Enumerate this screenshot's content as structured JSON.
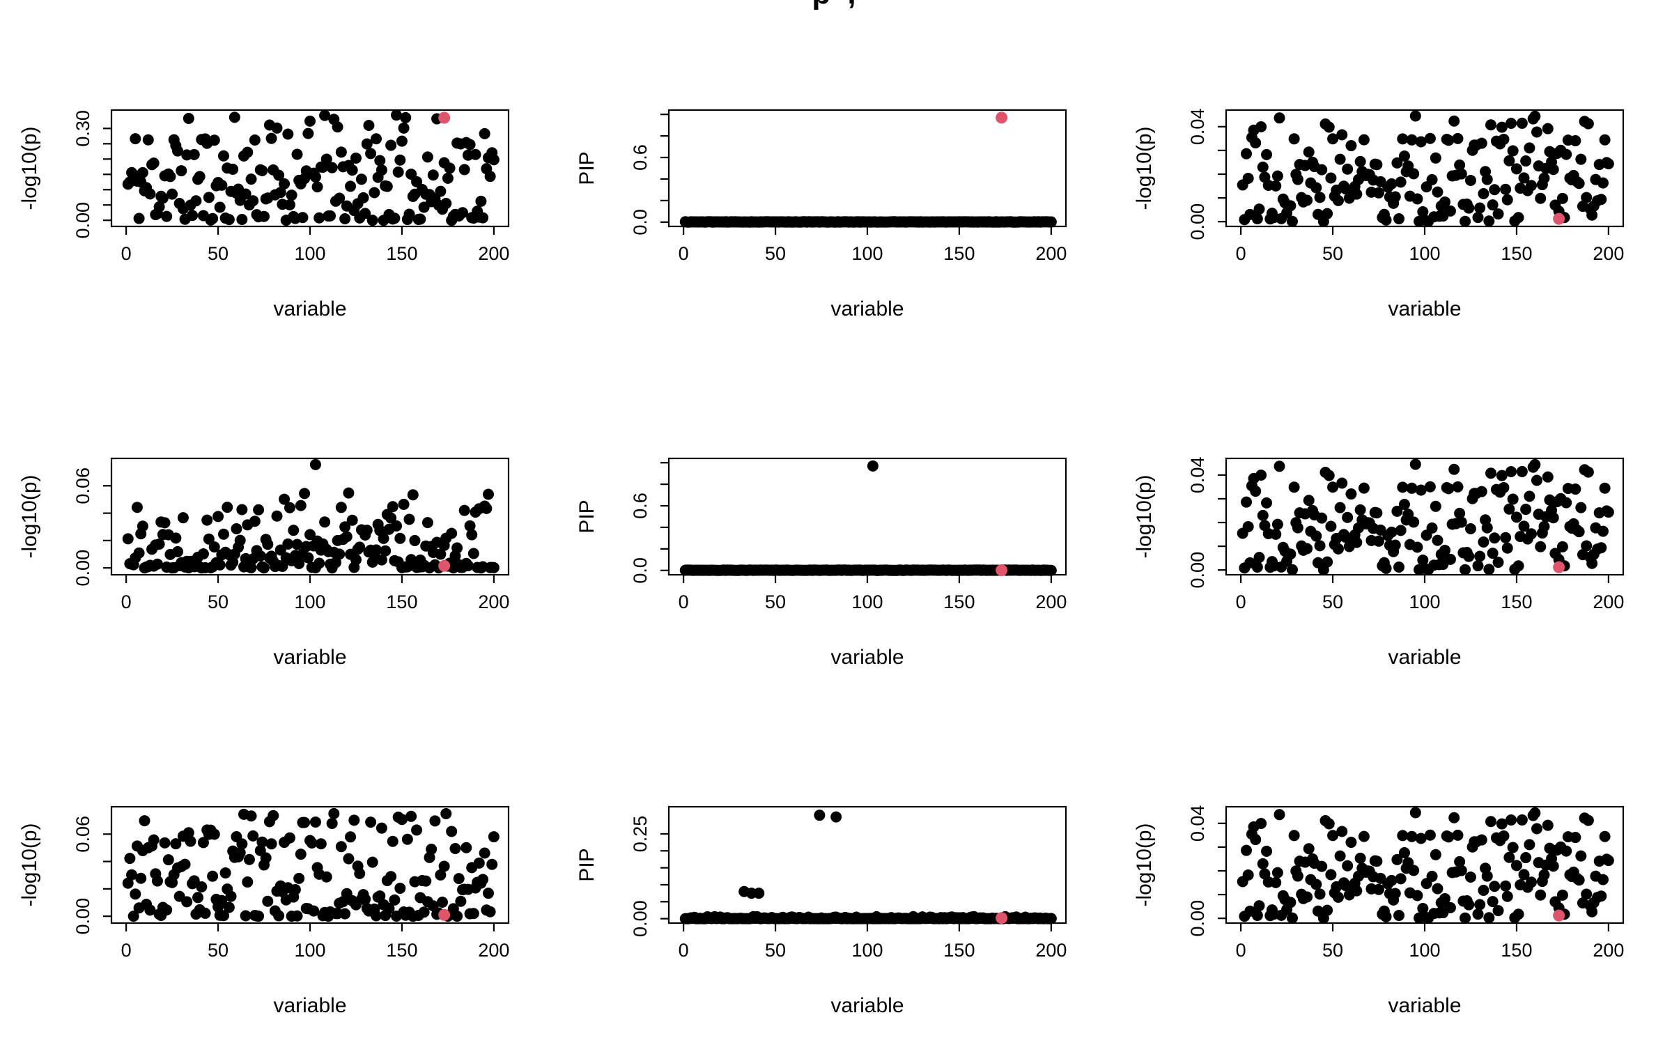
{
  "page": {
    "title_fragment": "p ,",
    "background": "#ffffff",
    "point_color": "#000000",
    "highlight_color": "#DF536B"
  },
  "chart_data": [
    {
      "type": "scatter",
      "row": 1,
      "col": 1,
      "xlabel": "variable",
      "ylabel": "-log10(p)",
      "xlim": [
        -8,
        208
      ],
      "xticks": [
        0,
        50,
        100,
        150,
        200
      ],
      "ylim": [
        -0.02,
        0.36
      ],
      "yticks": [
        0,
        0.05,
        0.1,
        0.15,
        0.2,
        0.25,
        0.3
      ],
      "ytick_labels": [
        {
          "value": 0,
          "text": "0.00"
        },
        {
          "value": 0.3,
          "text": "0.30"
        }
      ],
      "n_points": 200,
      "background": {
        "kind": "power",
        "max": 0.345,
        "exponent": 1.6,
        "seed": 11
      },
      "special_points": [],
      "highlight_point": {
        "x": 173,
        "y": 0.335
      }
    },
    {
      "type": "scatter",
      "row": 1,
      "col": 2,
      "xlabel": "variable",
      "ylabel": "PIP",
      "xlim": [
        -8,
        208
      ],
      "xticks": [
        0,
        50,
        100,
        150,
        200
      ],
      "ylim": [
        -0.04,
        1.04
      ],
      "yticks": [
        0,
        0.2,
        0.4,
        0.6,
        0.8,
        1.0
      ],
      "ytick_labels": [
        {
          "value": 0,
          "text": "0.0"
        },
        {
          "value": 0.6,
          "text": "0.6"
        }
      ],
      "n_points": 200,
      "background": {
        "kind": "power",
        "max": 0.004,
        "exponent": 1.0,
        "seed": 44
      },
      "special_points": [],
      "highlight_point": {
        "x": 173,
        "y": 0.97
      }
    },
    {
      "type": "scatter",
      "row": 1,
      "col": 3,
      "xlabel": "variable",
      "ylabel": "-log10(p)",
      "xlim": [
        -8,
        208
      ],
      "xticks": [
        0,
        50,
        100,
        150,
        200
      ],
      "ylim": [
        -0.002,
        0.047
      ],
      "yticks": [
        0,
        0.01,
        0.02,
        0.03,
        0.04
      ],
      "ytick_labels": [
        {
          "value": 0,
          "text": "0.00"
        },
        {
          "value": 0.04,
          "text": "0.04"
        }
      ],
      "n_points": 200,
      "background": {
        "kind": "power",
        "max": 0.045,
        "exponent": 1.25,
        "seed": 77
      },
      "special_points": [],
      "highlight_point": {
        "x": 173,
        "y": 0.0012
      }
    },
    {
      "type": "scatter",
      "row": 2,
      "col": 1,
      "xlabel": "variable",
      "ylabel": "-log10(p)",
      "xlim": [
        -8,
        208
      ],
      "xticks": [
        0,
        50,
        100,
        150,
        200
      ],
      "ylim": [
        -0.005,
        0.08
      ],
      "yticks": [
        0,
        0.02,
        0.04,
        0.06
      ],
      "ytick_labels": [
        {
          "value": 0,
          "text": "0.00"
        },
        {
          "value": 0.06,
          "text": "0.06"
        }
      ],
      "n_points": 200,
      "background": {
        "kind": "power",
        "max": 0.055,
        "exponent": 2.0,
        "seed": 22
      },
      "special_points": [
        {
          "x": 103,
          "y": 0.0755
        }
      ],
      "highlight_point": {
        "x": 173,
        "y": 0.0015
      }
    },
    {
      "type": "scatter",
      "row": 2,
      "col": 2,
      "xlabel": "variable",
      "ylabel": "PIP",
      "xlim": [
        -8,
        208
      ],
      "xticks": [
        0,
        50,
        100,
        150,
        200
      ],
      "ylim": [
        -0.04,
        1.04
      ],
      "yticks": [
        0,
        0.2,
        0.4,
        0.6,
        0.8,
        1.0
      ],
      "ytick_labels": [
        {
          "value": 0,
          "text": "0.0"
        },
        {
          "value": 0.6,
          "text": "0.6"
        }
      ],
      "n_points": 200,
      "background": {
        "kind": "power",
        "max": 0.004,
        "exponent": 1.0,
        "seed": 55
      },
      "special_points": [
        {
          "x": 103,
          "y": 0.97
        }
      ],
      "highlight_point": {
        "x": 173,
        "y": 0.002
      }
    },
    {
      "type": "scatter",
      "row": 2,
      "col": 3,
      "xlabel": "variable",
      "ylabel": "-log10(p)",
      "xlim": [
        -8,
        208
      ],
      "xticks": [
        0,
        50,
        100,
        150,
        200
      ],
      "ylim": [
        -0.002,
        0.047
      ],
      "yticks": [
        0,
        0.01,
        0.02,
        0.03,
        0.04
      ],
      "ytick_labels": [
        {
          "value": 0,
          "text": "0.00"
        },
        {
          "value": 0.04,
          "text": "0.04"
        }
      ],
      "n_points": 200,
      "background": {
        "kind": "power",
        "max": 0.045,
        "exponent": 1.25,
        "seed": 77
      },
      "special_points": [],
      "highlight_point": {
        "x": 173,
        "y": 0.0012
      }
    },
    {
      "type": "scatter",
      "row": 3,
      "col": 1,
      "xlabel": "variable",
      "ylabel": "-log10(p)",
      "xlim": [
        -8,
        208
      ],
      "xticks": [
        0,
        50,
        100,
        150,
        200
      ],
      "ylim": [
        -0.005,
        0.08
      ],
      "yticks": [
        0,
        0.02,
        0.04,
        0.06
      ],
      "ytick_labels": [
        {
          "value": 0,
          "text": "0.00"
        },
        {
          "value": 0.06,
          "text": "0.06"
        }
      ],
      "n_points": 200,
      "background": {
        "kind": "power",
        "max": 0.075,
        "exponent": 1.9,
        "seed": 33
      },
      "special_points": [],
      "highlight_point": {
        "x": 173,
        "y": 0.001
      }
    },
    {
      "type": "scatter",
      "row": 3,
      "col": 2,
      "xlabel": "variable",
      "ylabel": "PIP",
      "xlim": [
        -8,
        208
      ],
      "xticks": [
        0,
        50,
        100,
        150,
        200
      ],
      "ylim": [
        -0.013,
        0.33
      ],
      "yticks": [
        0,
        0.05,
        0.1,
        0.15,
        0.2,
        0.25
      ],
      "ytick_labels": [
        {
          "value": 0,
          "text": "0.00"
        },
        {
          "value": 0.25,
          "text": "0.25"
        }
      ],
      "n_points": 200,
      "background": {
        "kind": "power",
        "max": 0.006,
        "exponent": 3.0,
        "seed": 66
      },
      "special_points": [
        {
          "x": 33,
          "y": 0.08
        },
        {
          "x": 37,
          "y": 0.075
        },
        {
          "x": 41,
          "y": 0.075
        },
        {
          "x": 74,
          "y": 0.305
        },
        {
          "x": 83,
          "y": 0.3
        }
      ],
      "highlight_point": {
        "x": 173,
        "y": 0.002
      }
    },
    {
      "type": "scatter",
      "row": 3,
      "col": 3,
      "xlabel": "variable",
      "ylabel": "-log10(p)",
      "xlim": [
        -8,
        208
      ],
      "xticks": [
        0,
        50,
        100,
        150,
        200
      ],
      "ylim": [
        -0.002,
        0.047
      ],
      "yticks": [
        0,
        0.01,
        0.02,
        0.03,
        0.04
      ],
      "ytick_labels": [
        {
          "value": 0,
          "text": "0.00"
        },
        {
          "value": 0.04,
          "text": "0.04"
        }
      ],
      "n_points": 200,
      "background": {
        "kind": "power",
        "max": 0.045,
        "exponent": 1.25,
        "seed": 77
      },
      "special_points": [],
      "highlight_point": {
        "x": 173,
        "y": 0.0012
      }
    }
  ]
}
